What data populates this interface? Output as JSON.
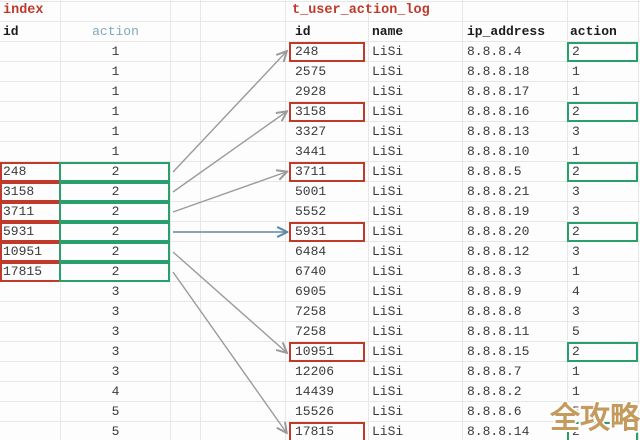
{
  "colors": {
    "title_red": "#c0392b",
    "box_red": "#c0392b",
    "box_green": "#27a06e",
    "header_teal": "#7fa8ba",
    "arrow_gray": "#9a9a9a",
    "arrow_blue": "#5e88a6",
    "watermark_gold": "#c49a5d"
  },
  "left_table": {
    "title": "index",
    "columns": [
      "id",
      "action"
    ],
    "rows": [
      {
        "id": "",
        "action": "1",
        "highlight": false
      },
      {
        "id": "",
        "action": "1",
        "highlight": false
      },
      {
        "id": "",
        "action": "1",
        "highlight": false
      },
      {
        "id": "",
        "action": "1",
        "highlight": false
      },
      {
        "id": "",
        "action": "1",
        "highlight": false
      },
      {
        "id": "",
        "action": "1",
        "highlight": false
      },
      {
        "id": "248",
        "action": "2",
        "highlight": true
      },
      {
        "id": "3158",
        "action": "2",
        "highlight": true
      },
      {
        "id": "3711",
        "action": "2",
        "highlight": true
      },
      {
        "id": "5931",
        "action": "2",
        "highlight": true
      },
      {
        "id": "10951",
        "action": "2",
        "highlight": true
      },
      {
        "id": "17815",
        "action": "2",
        "highlight": true
      },
      {
        "id": "",
        "action": "3",
        "highlight": false
      },
      {
        "id": "",
        "action": "3",
        "highlight": false
      },
      {
        "id": "",
        "action": "3",
        "highlight": false
      },
      {
        "id": "",
        "action": "3",
        "highlight": false
      },
      {
        "id": "",
        "action": "3",
        "highlight": false
      },
      {
        "id": "",
        "action": "4",
        "highlight": false
      },
      {
        "id": "",
        "action": "5",
        "highlight": false
      },
      {
        "id": "",
        "action": "5",
        "highlight": false
      }
    ]
  },
  "right_table": {
    "title": "t_user_action_log",
    "columns": [
      "id",
      "name",
      "ip_address",
      "action"
    ],
    "rows": [
      {
        "id": "248",
        "name": "LiSi",
        "ip_address": "8.8.8.4",
        "action": "2",
        "highlight": true
      },
      {
        "id": "2575",
        "name": "LiSi",
        "ip_address": "8.8.8.18",
        "action": "1",
        "highlight": false
      },
      {
        "id": "2928",
        "name": "LiSi",
        "ip_address": "8.8.8.17",
        "action": "1",
        "highlight": false
      },
      {
        "id": "3158",
        "name": "LiSi",
        "ip_address": "8.8.8.16",
        "action": "2",
        "highlight": true
      },
      {
        "id": "3327",
        "name": "LiSi",
        "ip_address": "8.8.8.13",
        "action": "3",
        "highlight": false
      },
      {
        "id": "3441",
        "name": "LiSi",
        "ip_address": "8.8.8.10",
        "action": "1",
        "highlight": false
      },
      {
        "id": "3711",
        "name": "LiSi",
        "ip_address": "8.8.8.5",
        "action": "2",
        "highlight": true
      },
      {
        "id": "5001",
        "name": "LiSi",
        "ip_address": "8.8.8.21",
        "action": "3",
        "highlight": false
      },
      {
        "id": "5552",
        "name": "LiSi",
        "ip_address": "8.8.8.19",
        "action": "3",
        "highlight": false
      },
      {
        "id": "5931",
        "name": "LiSi",
        "ip_address": "8.8.8.20",
        "action": "2",
        "highlight": true
      },
      {
        "id": "6484",
        "name": "LiSi",
        "ip_address": "8.8.8.12",
        "action": "3",
        "highlight": false
      },
      {
        "id": "6740",
        "name": "LiSi",
        "ip_address": "8.8.8.3",
        "action": "1",
        "highlight": false
      },
      {
        "id": "6905",
        "name": "LiSi",
        "ip_address": "8.8.8.9",
        "action": "4",
        "highlight": false
      },
      {
        "id": "7258",
        "name": "LiSi",
        "ip_address": "8.8.8.8",
        "action": "3",
        "highlight": false
      },
      {
        "id": "7258",
        "name": "LiSi",
        "ip_address": "8.8.8.11",
        "action": "5",
        "highlight": false
      },
      {
        "id": "10951",
        "name": "LiSi",
        "ip_address": "8.8.8.15",
        "action": "2",
        "highlight": true
      },
      {
        "id": "12206",
        "name": "LiSi",
        "ip_address": "8.8.8.7",
        "action": "1",
        "highlight": false
      },
      {
        "id": "14439",
        "name": "LiSi",
        "ip_address": "8.8.8.2",
        "action": "1",
        "highlight": false
      },
      {
        "id": "15526",
        "name": "LiSi",
        "ip_address": "8.8.8.6",
        "action": "5",
        "highlight": false
      },
      {
        "id": "17815",
        "name": "LiSi",
        "ip_address": "8.8.8.14",
        "action": "2",
        "highlight": true
      }
    ]
  },
  "links": [
    {
      "value": "248",
      "left_row": 7,
      "right_row": 1,
      "color": "gray"
    },
    {
      "value": "3158",
      "left_row": 8,
      "right_row": 4,
      "color": "gray"
    },
    {
      "value": "3711",
      "left_row": 9,
      "right_row": 7,
      "color": "gray"
    },
    {
      "value": "5931",
      "left_row": 10,
      "right_row": 10,
      "color": "blue"
    },
    {
      "value": "10951",
      "left_row": 11,
      "right_row": 16,
      "color": "gray"
    },
    {
      "value": "17815",
      "left_row": 12,
      "right_row": 20,
      "color": "gray"
    }
  ],
  "watermark": {
    "text": "全攻略"
  }
}
